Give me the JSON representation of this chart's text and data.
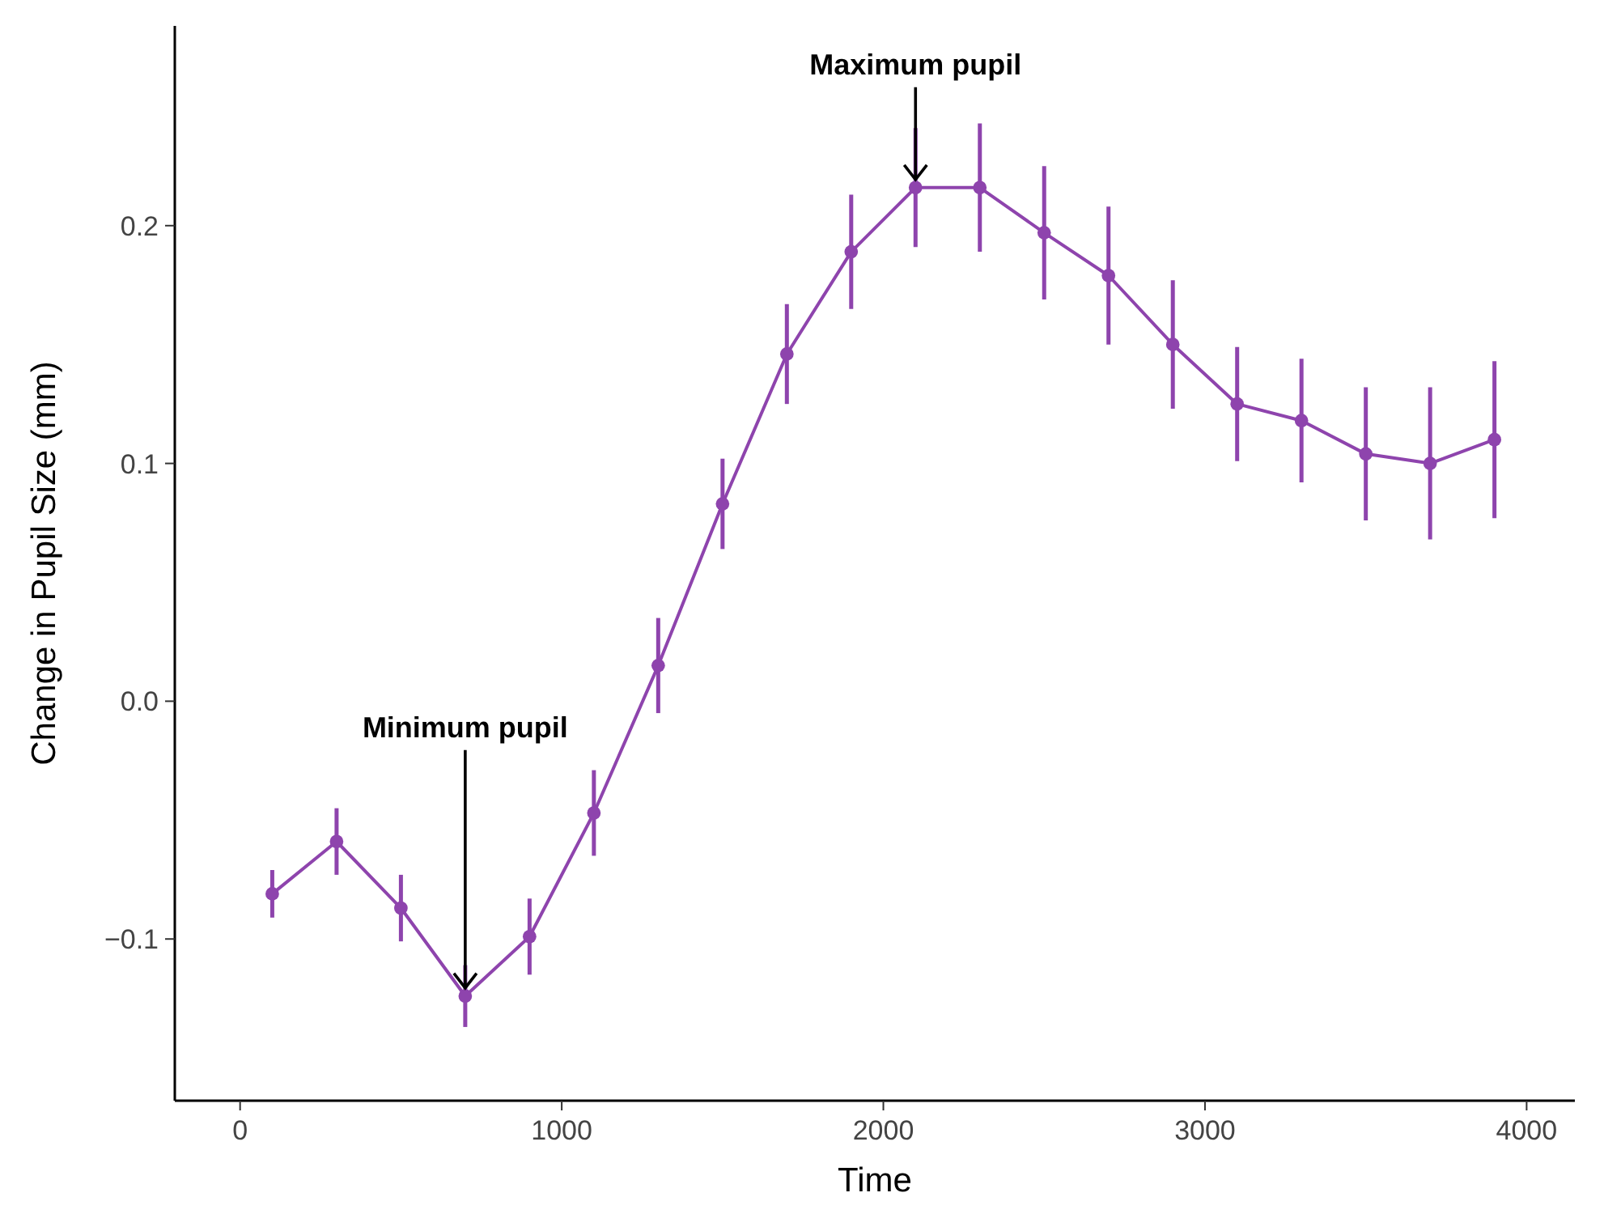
{
  "chart_data": {
    "type": "line",
    "xlabel": "Time",
    "ylabel": "Change in Pupil Size (mm)",
    "x": [
      100,
      300,
      500,
      700,
      900,
      1100,
      1300,
      1500,
      1700,
      1900,
      2100,
      2300,
      2500,
      2700,
      2900,
      3100,
      3300,
      3500,
      3700,
      3900
    ],
    "series": [
      {
        "color": "#8e44ad",
        "values": [
          -0.081,
          -0.059,
          -0.087,
          -0.124,
          -0.099,
          -0.047,
          0.015,
          0.083,
          0.146,
          0.189,
          0.216,
          0.216,
          0.197,
          0.179,
          0.15,
          0.125,
          0.118,
          0.104,
          0.1,
          0.11
        ],
        "errors": [
          0.01,
          0.014,
          0.014,
          0.013,
          0.016,
          0.018,
          0.02,
          0.019,
          0.021,
          0.024,
          0.025,
          0.027,
          0.028,
          0.029,
          0.027,
          0.024,
          0.026,
          0.028,
          0.032,
          0.033
        ]
      }
    ],
    "xlim": [
      -203,
      4150
    ],
    "ylim": [
      -0.168,
      0.284
    ],
    "xticks": [
      0,
      1000,
      2000,
      3000,
      4000
    ],
    "yticks": [
      {
        "value": -0.1,
        "label": "−0.1"
      },
      {
        "value": 0,
        "label": "0.0"
      },
      {
        "value": 0.1,
        "label": "0.1"
      },
      {
        "value": 0.2,
        "label": "0.2"
      }
    ],
    "marker": "circle",
    "line_style": "solid",
    "grid": false,
    "annotations": [
      {
        "text": "Maximum pupil",
        "x": 2100,
        "y": 0.216
      },
      {
        "text": "Minimum pupil",
        "x": 700,
        "y": -0.124
      }
    ]
  }
}
